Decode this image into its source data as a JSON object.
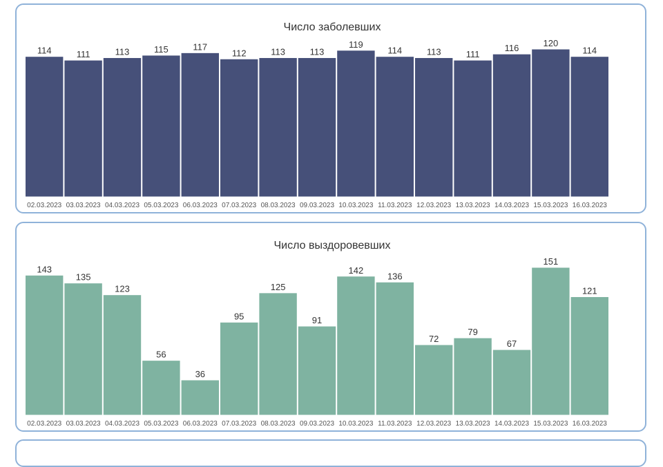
{
  "chart_data": [
    {
      "type": "bar",
      "title": "Число заболевших",
      "color": "#465079",
      "categories": [
        "02.03.2023",
        "03.03.2023",
        "04.03.2023",
        "05.03.2023",
        "06.03.2023",
        "07.03.2023",
        "08.03.2023",
        "09.03.2023",
        "10.03.2023",
        "11.03.2023",
        "12.03.2023",
        "13.03.2023",
        "14.03.2023",
        "15.03.2023",
        "16.03.2023"
      ],
      "values": [
        114,
        111,
        113,
        115,
        117,
        112,
        113,
        113,
        119,
        114,
        113,
        111,
        116,
        120,
        114
      ],
      "ylim": [
        0,
        120
      ],
      "grid": false,
      "legend": "none"
    },
    {
      "type": "bar",
      "title": "Число выздоровевших",
      "color": "#7fb3a1",
      "categories": [
        "02.03.2023",
        "03.03.2023",
        "04.03.2023",
        "05.03.2023",
        "06.03.2023",
        "07.03.2023",
        "08.03.2023",
        "09.03.2023",
        "10.03.2023",
        "11.03.2023",
        "12.03.2023",
        "13.03.2023",
        "14.03.2023",
        "15.03.2023",
        "16.03.2023"
      ],
      "values": [
        143,
        135,
        123,
        56,
        36,
        95,
        125,
        91,
        142,
        136,
        72,
        79,
        67,
        151,
        121
      ],
      "ylim": [
        0,
        151
      ],
      "grid": false,
      "legend": "none"
    }
  ]
}
